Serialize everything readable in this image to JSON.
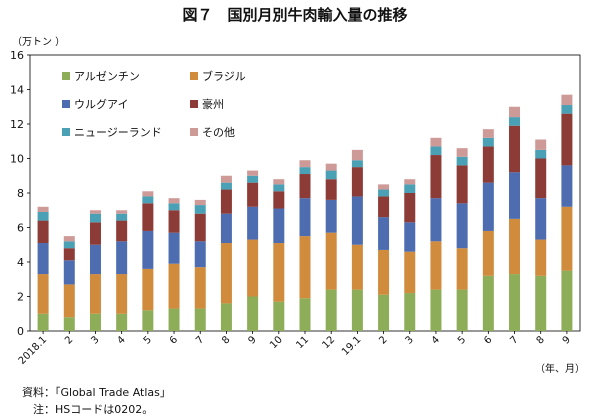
{
  "title": "図７　国別月別牛肉輸入量の推移",
  "notes": {
    "source": "資料：「Global Trade Atlas」",
    "note": "　注：HSコードは0202。"
  },
  "chart_data": {
    "type": "bar",
    "stacked": true,
    "ylabel": "（万トン ）",
    "xlabel": "（年、月）",
    "ylim": [
      0,
      16
    ],
    "yticks": [
      "0",
      "2",
      "4",
      "6",
      "8",
      "10",
      "12",
      "14",
      "16"
    ],
    "grid": false,
    "legend_position": "top-left",
    "categories": [
      "2018.1",
      "2",
      "3",
      "4",
      "5",
      "6",
      "7",
      "8",
      "9",
      "10",
      "11",
      "12",
      "19.1",
      "2",
      "3",
      "4",
      "5",
      "6",
      "7",
      "8",
      "9"
    ],
    "series": [
      {
        "name": "アルゼンチン",
        "color": "#8ead58",
        "values": [
          1.0,
          0.8,
          1.0,
          1.0,
          1.2,
          1.3,
          1.3,
          1.6,
          2.0,
          1.7,
          1.9,
          2.4,
          2.4,
          2.1,
          2.2,
          2.4,
          2.4,
          3.2,
          3.3,
          3.2,
          3.5
        ]
      },
      {
        "name": "ブラジル",
        "color": "#d08b3c",
        "values": [
          2.3,
          1.9,
          2.3,
          2.3,
          2.4,
          2.6,
          2.4,
          3.5,
          3.3,
          3.4,
          3.6,
          3.3,
          2.6,
          2.6,
          2.4,
          2.8,
          2.4,
          2.6,
          3.2,
          2.1,
          3.7
        ]
      },
      {
        "name": "ウルグアイ",
        "color": "#4d6db0",
        "values": [
          1.8,
          1.4,
          1.7,
          1.9,
          2.2,
          1.8,
          1.5,
          1.7,
          1.9,
          2.0,
          2.2,
          1.9,
          2.8,
          1.9,
          1.7,
          2.5,
          2.6,
          2.8,
          2.7,
          2.4,
          2.4
        ]
      },
      {
        "name": "豪州",
        "color": "#8c3b36",
        "values": [
          1.3,
          0.7,
          1.3,
          1.2,
          1.6,
          1.3,
          1.6,
          1.4,
          1.4,
          1.0,
          1.4,
          1.2,
          1.7,
          1.2,
          1.7,
          2.5,
          2.2,
          2.1,
          2.7,
          2.3,
          3.0
        ]
      },
      {
        "name": "ニュージーランド",
        "color": "#4aa0b5",
        "values": [
          0.5,
          0.4,
          0.5,
          0.4,
          0.4,
          0.4,
          0.5,
          0.4,
          0.4,
          0.4,
          0.4,
          0.5,
          0.4,
          0.4,
          0.5,
          0.5,
          0.5,
          0.5,
          0.5,
          0.5,
          0.5
        ]
      },
      {
        "name": "その他",
        "color": "#cd9a98",
        "values": [
          0.3,
          0.3,
          0.2,
          0.2,
          0.3,
          0.3,
          0.3,
          0.4,
          0.3,
          0.3,
          0.4,
          0.4,
          0.6,
          0.3,
          0.3,
          0.5,
          0.5,
          0.5,
          0.6,
          0.6,
          0.6
        ]
      }
    ]
  }
}
